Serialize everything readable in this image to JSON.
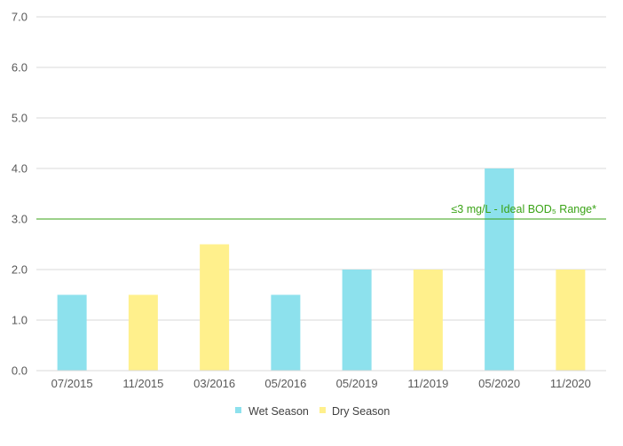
{
  "chart_data": {
    "type": "bar",
    "categories": [
      "07/2015",
      "11/2015",
      "03/2016",
      "05/2016",
      "05/2019",
      "11/2019",
      "05/2020",
      "11/2020"
    ],
    "values": [
      1.5,
      1.5,
      2.5,
      1.5,
      2.0,
      2.0,
      4.0,
      2.0
    ],
    "season": [
      "Wet Season",
      "Dry Season",
      "Dry Season",
      "Wet Season",
      "Wet Season",
      "Dry Season",
      "Wet Season",
      "Dry Season"
    ],
    "series": [
      {
        "name": "Wet Season",
        "color": "#8de1ed"
      },
      {
        "name": "Dry Season",
        "color": "#fff08c"
      }
    ],
    "yticks": [
      "0.0",
      "1.0",
      "2.0",
      "3.0",
      "4.0",
      "5.0",
      "6.0",
      "7.0"
    ],
    "ylim": [
      0,
      7
    ],
    "grid": true,
    "legend_position": "bottom",
    "threshold": {
      "value": 3.0,
      "label": "≤3 mg/L - Ideal BOD₅ Range*",
      "color": "#3aa316"
    },
    "gridline_color": "#d9d9d9",
    "axis_color": "#d9d9d9"
  }
}
